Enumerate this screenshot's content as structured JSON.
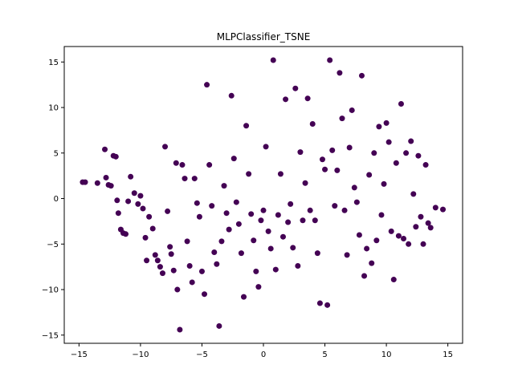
{
  "chart_data": {
    "type": "scatter",
    "title": "MLPClassifier_TSNE",
    "xlabel": "",
    "ylabel": "",
    "xlim": [
      -16.2,
      16.2
    ],
    "ylim": [
      -15.9,
      16.7
    ],
    "xticks": [
      -15,
      -10,
      -5,
      0,
      5,
      10,
      15
    ],
    "yticks": [
      -15,
      -10,
      -5,
      0,
      5,
      10,
      15
    ],
    "grid": false,
    "legend": "none",
    "marker_color": "#440154",
    "series": [
      {
        "points": [
          [
            -14.7,
            1.8
          ],
          [
            -14.5,
            1.8
          ],
          [
            -13.5,
            1.7
          ],
          [
            -12.9,
            5.4
          ],
          [
            -12.8,
            2.3
          ],
          [
            -12.6,
            1.5
          ],
          [
            -12.4,
            1.4
          ],
          [
            -12.2,
            4.7
          ],
          [
            -12.0,
            4.6
          ],
          [
            -11.9,
            -0.2
          ],
          [
            -11.8,
            -1.6
          ],
          [
            -11.6,
            -3.4
          ],
          [
            -11.4,
            -3.8
          ],
          [
            -11.2,
            -3.9
          ],
          [
            -11.0,
            -0.3
          ],
          [
            -10.8,
            2.4
          ],
          [
            -10.5,
            0.6
          ],
          [
            -10.2,
            -0.6
          ],
          [
            -10.0,
            0.3
          ],
          [
            -9.8,
            -1.1
          ],
          [
            -9.6,
            -4.3
          ],
          [
            -9.5,
            -6.8
          ],
          [
            -9.3,
            -2.0
          ],
          [
            -9.0,
            -3.3
          ],
          [
            -8.8,
            -6.2
          ],
          [
            -8.6,
            -6.8
          ],
          [
            -8.4,
            -7.5
          ],
          [
            -8.2,
            -8.2
          ],
          [
            -8.0,
            5.7
          ],
          [
            -7.8,
            -1.4
          ],
          [
            -7.6,
            -5.3
          ],
          [
            -7.5,
            -6.1
          ],
          [
            -7.3,
            -7.9
          ],
          [
            -7.1,
            3.9
          ],
          [
            -7.0,
            -10.0
          ],
          [
            -6.8,
            -14.4
          ],
          [
            -6.6,
            3.7
          ],
          [
            -6.4,
            2.2
          ],
          [
            -6.2,
            -4.7
          ],
          [
            -6.0,
            -7.4
          ],
          [
            -5.8,
            -9.2
          ],
          [
            -5.6,
            2.2
          ],
          [
            -5.4,
            -0.5
          ],
          [
            -5.2,
            -2.0
          ],
          [
            -5.0,
            -8.0
          ],
          [
            -4.8,
            -10.5
          ],
          [
            -4.6,
            12.5
          ],
          [
            -4.4,
            3.7
          ],
          [
            -4.2,
            -0.8
          ],
          [
            -4.0,
            -5.9
          ],
          [
            -3.8,
            -7.2
          ],
          [
            -3.6,
            -14.0
          ],
          [
            -3.4,
            -4.7
          ],
          [
            -3.2,
            1.4
          ],
          [
            -3.0,
            -1.6
          ],
          [
            -2.8,
            -3.4
          ],
          [
            -2.6,
            11.3
          ],
          [
            -2.4,
            4.4
          ],
          [
            -2.2,
            -0.4
          ],
          [
            -2.0,
            -2.8
          ],
          [
            -1.8,
            -6.0
          ],
          [
            -1.6,
            -10.8
          ],
          [
            -1.4,
            8.0
          ],
          [
            -1.2,
            2.7
          ],
          [
            -1.0,
            -1.7
          ],
          [
            -0.8,
            -4.6
          ],
          [
            -0.6,
            -8.0
          ],
          [
            -0.4,
            -9.7
          ],
          [
            -0.2,
            -2.4
          ],
          [
            0.0,
            -1.3
          ],
          [
            0.2,
            5.7
          ],
          [
            0.4,
            -3.6
          ],
          [
            0.6,
            -5.5
          ],
          [
            0.8,
            15.2
          ],
          [
            1.0,
            -7.8
          ],
          [
            1.2,
            -1.8
          ],
          [
            1.4,
            2.7
          ],
          [
            1.6,
            -4.2
          ],
          [
            1.8,
            10.9
          ],
          [
            2.0,
            -2.6
          ],
          [
            2.2,
            -0.6
          ],
          [
            2.4,
            -5.4
          ],
          [
            2.6,
            12.1
          ],
          [
            2.8,
            -7.4
          ],
          [
            3.0,
            5.1
          ],
          [
            3.2,
            -2.4
          ],
          [
            3.4,
            1.7
          ],
          [
            3.6,
            11.0
          ],
          [
            3.8,
            -1.3
          ],
          [
            4.0,
            8.2
          ],
          [
            4.2,
            -2.4
          ],
          [
            4.4,
            -6.0
          ],
          [
            4.6,
            -11.5
          ],
          [
            4.8,
            4.3
          ],
          [
            5.0,
            3.2
          ],
          [
            5.2,
            -11.7
          ],
          [
            5.4,
            15.2
          ],
          [
            5.6,
            5.3
          ],
          [
            5.8,
            -0.8
          ],
          [
            6.0,
            3.1
          ],
          [
            6.2,
            13.8
          ],
          [
            6.4,
            8.8
          ],
          [
            6.6,
            -1.3
          ],
          [
            6.8,
            -6.2
          ],
          [
            7.0,
            5.6
          ],
          [
            7.2,
            9.7
          ],
          [
            7.4,
            1.2
          ],
          [
            7.6,
            -0.4
          ],
          [
            7.8,
            -4.0
          ],
          [
            8.0,
            13.5
          ],
          [
            8.2,
            -8.5
          ],
          [
            8.4,
            -5.5
          ],
          [
            8.6,
            2.6
          ],
          [
            8.8,
            -7.1
          ],
          [
            9.0,
            5.0
          ],
          [
            9.2,
            -4.6
          ],
          [
            9.4,
            7.9
          ],
          [
            9.6,
            -1.8
          ],
          [
            9.8,
            1.6
          ],
          [
            10.0,
            8.3
          ],
          [
            10.2,
            6.2
          ],
          [
            10.4,
            -3.6
          ],
          [
            10.6,
            -8.9
          ],
          [
            10.8,
            3.9
          ],
          [
            11.0,
            -4.1
          ],
          [
            11.2,
            10.4
          ],
          [
            11.4,
            -4.4
          ],
          [
            11.6,
            5.0
          ],
          [
            11.8,
            -5.0
          ],
          [
            12.0,
            6.3
          ],
          [
            12.2,
            0.5
          ],
          [
            12.4,
            -3.1
          ],
          [
            12.6,
            4.7
          ],
          [
            12.8,
            -2.0
          ],
          [
            13.0,
            -5.0
          ],
          [
            13.2,
            3.7
          ],
          [
            13.4,
            -2.7
          ],
          [
            13.6,
            -3.2
          ],
          [
            14.0,
            -1.0
          ],
          [
            14.6,
            -1.2
          ]
        ]
      }
    ]
  }
}
